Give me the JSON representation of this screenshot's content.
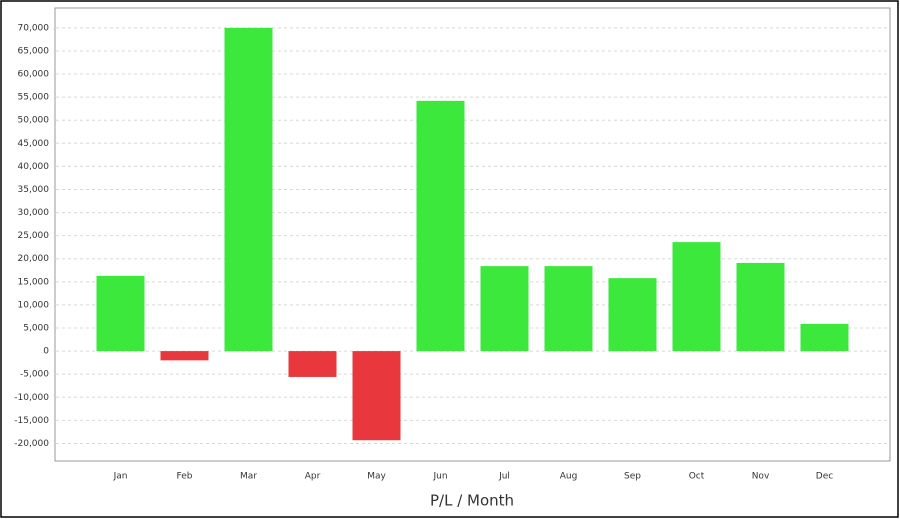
{
  "chart_data": {
    "type": "bar",
    "x_label": "P/L / Month",
    "categories": [
      "Jan",
      "Feb",
      "Mar",
      "Apr",
      "May",
      "Jun",
      "Jul",
      "Aug",
      "Sep",
      "Oct",
      "Nov",
      "Dec"
    ],
    "values": [
      16300,
      -2000,
      70000,
      -5600,
      -19300,
      54200,
      18400,
      18400,
      15800,
      23600,
      19100,
      5900
    ],
    "positive_color": "#3de83d",
    "negative_color": "#e8383d",
    "ylim": [
      -23800,
      74300
    ],
    "yticks": [
      {
        "value": -20000,
        "label": "-20,000"
      },
      {
        "value": -15000,
        "label": "-15,000"
      },
      {
        "value": -10000,
        "label": "-10,000"
      },
      {
        "value": -5000,
        "label": "-5,000"
      },
      0,
      {
        "value": 5000,
        "label": "5,000"
      },
      {
        "value": 10000,
        "label": "10,000"
      },
      {
        "value": 15000,
        "label": "15,000"
      },
      {
        "value": 20000,
        "label": "20,000"
      },
      {
        "value": 25000,
        "label": "25,000"
      },
      {
        "value": 30000,
        "label": "30,000"
      },
      {
        "value": 35000,
        "label": "35,000"
      },
      {
        "value": 40000,
        "label": "40,000"
      },
      {
        "value": 45000,
        "label": "45,000"
      },
      {
        "value": 50000,
        "label": "50,000"
      },
      {
        "value": 55000,
        "label": "55,000"
      },
      {
        "value": 60000,
        "label": "60,000"
      },
      {
        "value": 65000,
        "label": "65,000"
      },
      {
        "value": 70000,
        "label": "70,000"
      }
    ],
    "grid": true
  }
}
